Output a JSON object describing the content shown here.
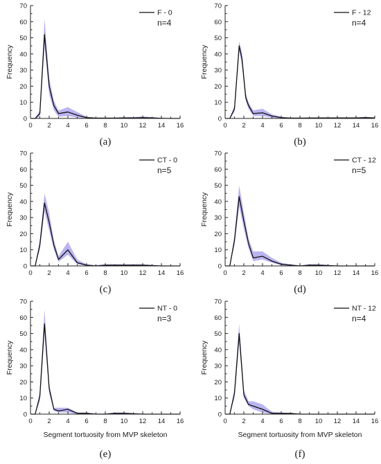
{
  "figure": {
    "xlabel_shared": "Segment tortuosity from MVP skeleton",
    "colors": {
      "band": "#8f88e6",
      "band_opacity": 0.62,
      "line": "#0f0f0f",
      "axis": "#222222"
    }
  },
  "chart_data": [
    {
      "id": "a",
      "type": "line",
      "panel_label": "(a)",
      "ylabel": "Frequency",
      "xlabel": "",
      "legend": "F - 0",
      "n_label": "n=4",
      "xlim": [
        0,
        16
      ],
      "ylim": [
        0,
        70
      ],
      "xticks": [
        0,
        2,
        4,
        6,
        8,
        10,
        12,
        14,
        16
      ],
      "yticks": [
        0,
        10,
        20,
        30,
        40,
        50,
        60,
        70
      ],
      "series": [
        {
          "x": [
            0,
            0.5,
            1,
            1.5,
            2,
            2.5,
            3,
            4,
            5,
            6,
            7,
            8,
            9,
            10,
            11,
            12,
            13,
            14,
            15,
            16
          ],
          "y": [
            0,
            0,
            3,
            52,
            20,
            8,
            3,
            4,
            2,
            0.5,
            0.2,
            0.2,
            0.2,
            0.3,
            0.3,
            0.5,
            0.3,
            0.1,
            0,
            0
          ],
          "lower": [
            0,
            0,
            1,
            46,
            15,
            5,
            1,
            1.5,
            0.5,
            0,
            0,
            0,
            0,
            0,
            0,
            0,
            0,
            0,
            0,
            0
          ],
          "upper": [
            0,
            0,
            5,
            62,
            25,
            11,
            5,
            7,
            4,
            1,
            0.5,
            0.5,
            0.5,
            0.8,
            0.8,
            1.2,
            0.8,
            0.3,
            0.1,
            0
          ]
        }
      ]
    },
    {
      "id": "b",
      "type": "line",
      "panel_label": "(b)",
      "ylabel": "Frequency",
      "xlabel": "",
      "legend": "F - 12",
      "n_label": "n=4",
      "xlim": [
        0,
        16
      ],
      "ylim": [
        0,
        70
      ],
      "xticks": [
        0,
        2,
        4,
        6,
        8,
        10,
        12,
        14,
        16
      ],
      "yticks": [
        0,
        10,
        20,
        30,
        40,
        50,
        60,
        70
      ],
      "series": [
        {
          "x": [
            0,
            0.5,
            1,
            1.5,
            1.8,
            2.2,
            2.5,
            3,
            4,
            5,
            6,
            7,
            8,
            10,
            12,
            14,
            15,
            16
          ],
          "y": [
            0,
            0,
            6,
            45,
            37,
            13,
            8,
            3,
            3.5,
            1.5,
            0.5,
            0.2,
            0.2,
            0.3,
            0.3,
            0.3,
            0.5,
            0.3
          ],
          "lower": [
            0,
            0,
            4,
            42,
            33,
            11,
            6,
            1.5,
            1.5,
            0.5,
            0,
            0,
            0,
            0,
            0,
            0,
            0,
            0
          ],
          "upper": [
            0,
            0,
            8,
            48,
            41,
            16,
            10,
            5,
            6,
            2.5,
            1,
            0.5,
            0.5,
            0.6,
            0.6,
            0.6,
            1,
            0.6
          ]
        }
      ]
    },
    {
      "id": "c",
      "type": "line",
      "panel_label": "(c)",
      "ylabel": "Frequency",
      "xlabel": "",
      "legend": "CT - 0",
      "n_label": "n=5",
      "xlim": [
        0,
        16
      ],
      "ylim": [
        0,
        70
      ],
      "xticks": [
        0,
        2,
        4,
        6,
        8,
        10,
        12,
        14,
        16
      ],
      "yticks": [
        0,
        10,
        20,
        30,
        40,
        50,
        60,
        70
      ],
      "series": [
        {
          "x": [
            0,
            0.5,
            1,
            1.5,
            2,
            2.5,
            3,
            4,
            5,
            6,
            7,
            8,
            10,
            12,
            14,
            16
          ],
          "y": [
            0,
            0,
            13,
            39,
            27,
            13,
            4,
            10,
            2,
            0.5,
            0,
            0.5,
            0.5,
            0.5,
            0,
            0
          ],
          "lower": [
            0,
            0,
            10,
            34,
            22,
            10,
            2.5,
            7,
            1,
            0,
            0,
            0,
            0,
            0,
            0,
            0
          ],
          "upper": [
            0,
            0,
            16,
            45,
            33,
            16,
            6,
            15,
            4,
            1,
            0.5,
            1,
            1,
            1,
            0.3,
            0
          ]
        }
      ]
    },
    {
      "id": "d",
      "type": "line",
      "panel_label": "(d)",
      "ylabel": "Frequency",
      "xlabel": "",
      "legend": "CT - 12",
      "n_label": "n=5",
      "xlim": [
        0,
        16
      ],
      "ylim": [
        0,
        70
      ],
      "xticks": [
        0,
        2,
        4,
        6,
        8,
        10,
        12,
        14,
        16
      ],
      "yticks": [
        0,
        10,
        20,
        30,
        40,
        50,
        60,
        70
      ],
      "series": [
        {
          "x": [
            0,
            0.5,
            1,
            1.5,
            2,
            2.5,
            3,
            4,
            5,
            6,
            7,
            8,
            9,
            10,
            12,
            14,
            16
          ],
          "y": [
            0,
            0,
            16,
            43,
            28,
            14,
            5,
            6,
            3,
            1,
            0.5,
            0,
            0.5,
            0.5,
            0,
            0,
            0
          ],
          "lower": [
            0,
            0,
            13,
            37,
            23,
            11,
            3,
            4,
            2,
            0.5,
            0,
            0,
            0,
            0,
            0,
            0,
            0
          ],
          "upper": [
            0,
            0,
            19,
            50,
            33,
            17,
            9,
            9,
            5,
            2,
            1,
            0.3,
            1,
            1,
            0.3,
            0,
            0
          ]
        }
      ]
    },
    {
      "id": "e",
      "type": "line",
      "panel_label": "(e)",
      "ylabel": "Frequency",
      "xlabel": "Segment tortuosity from MVP skeleton",
      "legend": "NT - 0",
      "n_label": "n=3",
      "xlim": [
        0,
        16
      ],
      "ylim": [
        0,
        70
      ],
      "xticks": [
        0,
        2,
        4,
        6,
        8,
        10,
        12,
        14,
        16
      ],
      "yticks": [
        0,
        10,
        20,
        30,
        40,
        50,
        60,
        70
      ],
      "series": [
        {
          "x": [
            0,
            0.5,
            1,
            1.5,
            2,
            2.5,
            3,
            4,
            5,
            6,
            7,
            8,
            9,
            10,
            12,
            14,
            16
          ],
          "y": [
            0,
            0,
            11,
            56,
            16,
            3,
            2,
            3,
            0.5,
            0.5,
            0,
            0,
            0.5,
            0.5,
            0,
            0,
            0
          ],
          "lower": [
            0,
            0,
            8,
            51,
            13,
            2,
            1,
            1,
            0,
            0,
            0,
            0,
            0,
            0,
            0,
            0,
            0
          ],
          "upper": [
            0,
            0,
            14,
            65,
            19,
            4,
            4,
            4,
            1,
            1,
            0.3,
            0.3,
            1,
            1,
            0.3,
            0,
            0
          ]
        }
      ]
    },
    {
      "id": "f",
      "type": "line",
      "panel_label": "(f)",
      "ylabel": "Frequency",
      "xlabel": "Segment tortuosity from MVP skeleton",
      "legend": "NT - 12",
      "n_label": "n=4",
      "xlim": [
        0,
        16
      ],
      "ylim": [
        0,
        70
      ],
      "xticks": [
        0,
        2,
        4,
        6,
        8,
        10,
        12,
        14,
        16
      ],
      "yticks": [
        0,
        10,
        20,
        30,
        40,
        50,
        60,
        70
      ],
      "series": [
        {
          "x": [
            0,
            0.5,
            1,
            1.5,
            2,
            2.5,
            3,
            4,
            5,
            6,
            7,
            8,
            10,
            12,
            14,
            16
          ],
          "y": [
            0,
            0,
            13,
            50,
            12,
            6,
            5,
            3,
            0.5,
            0.5,
            0.5,
            0,
            0,
            0,
            0,
            0
          ],
          "lower": [
            0,
            0,
            10,
            45,
            10,
            5,
            3,
            1,
            0,
            0,
            0,
            0,
            0,
            0,
            0,
            0
          ],
          "upper": [
            0,
            0,
            16,
            56,
            15,
            8,
            8,
            6,
            1.5,
            1,
            0.5,
            0.3,
            0,
            0,
            0,
            0
          ]
        }
      ]
    }
  ]
}
